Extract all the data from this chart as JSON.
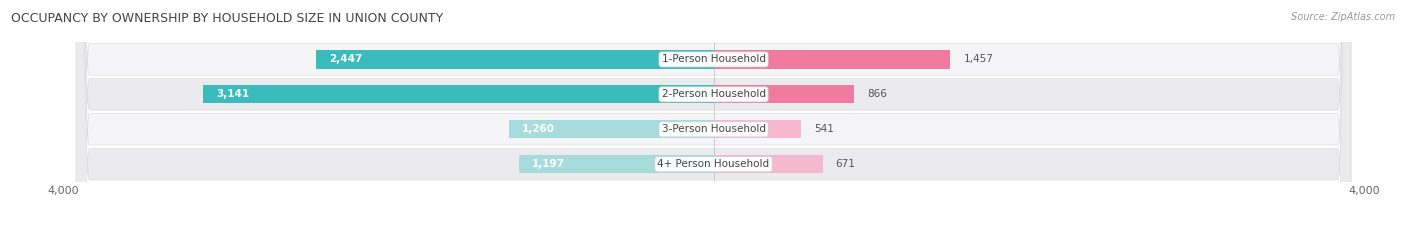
{
  "title": "OCCUPANCY BY OWNERSHIP BY HOUSEHOLD SIZE IN UNION COUNTY",
  "source": "Source: ZipAtlas.com",
  "categories": [
    "1-Person Household",
    "2-Person Household",
    "3-Person Household",
    "4+ Person Household"
  ],
  "owner_values": [
    2447,
    3141,
    1260,
    1197
  ],
  "renter_values": [
    1457,
    866,
    541,
    671
  ],
  "max_axis": 4000,
  "owner_color": "#3BBCBC",
  "owner_color_light": "#A8DCDC",
  "renter_color": "#F07AA0",
  "renter_color_light": "#F5B8CC",
  "row_bg_light": "#F5F5F7",
  "row_bg_dark": "#EBEBEE",
  "bar_height": 0.52,
  "figsize": [
    14.06,
    2.33
  ],
  "dpi": 100,
  "legend_owner_color": "#3BBCBC",
  "legend_renter_color": "#F5B8CC"
}
